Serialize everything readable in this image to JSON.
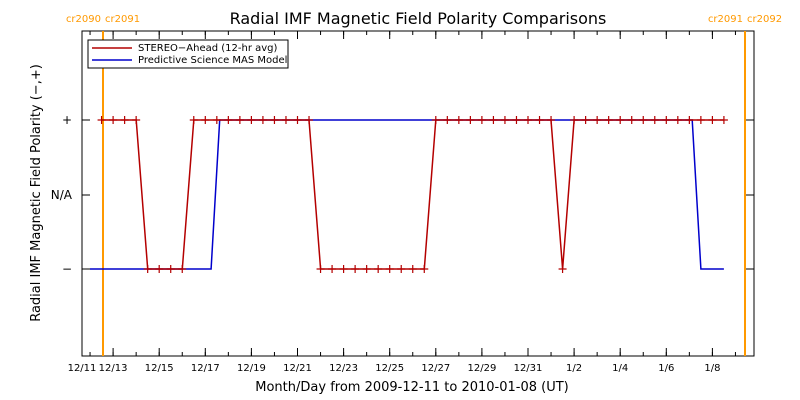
{
  "chart_data": {
    "type": "line",
    "title": "Radial IMF Magnetic Field Polarity Comparisons",
    "xlabel": "Month/Day from 2009-12-11 to 2010-01-08 (UT)",
    "ylabel": "Radial IMF Magnetic Field Polarity (−,+)",
    "xlim": [
      "2009-12-11",
      "2010-01-08"
    ],
    "x_tick_labels": [
      "12/11",
      "12/13",
      "12/15",
      "12/17",
      "12/19",
      "12/21",
      "12/23",
      "12/25",
      "12/27",
      "12/29",
      "12/31",
      "1/2",
      "1/4",
      "1/6",
      "1/8"
    ],
    "y_categories": [
      "−",
      "N/A",
      "+"
    ],
    "carrington_markers": [
      {
        "date": "2009-12-12",
        "label_left": "cr2090",
        "label_right": "cr2091"
      },
      {
        "date": "2010-01-08",
        "label_left": "cr2091",
        "label_right": "cr2092"
      }
    ],
    "colors": {
      "stereo": "#b40000",
      "mas": "#0000cc",
      "carrington": "#ff9900"
    },
    "series": [
      {
        "name": "STEREO−Ahead (12-hr avg)",
        "color": "#b40000",
        "marker": "+",
        "points": [
          [
            "2009-12-12 12:00",
            "+"
          ],
          [
            "2009-12-13 00:00",
            "+"
          ],
          [
            "2009-12-13 12:00",
            "+"
          ],
          [
            "2009-12-14 00:00",
            "+"
          ],
          [
            "2009-12-14 12:00",
            "−"
          ],
          [
            "2009-12-15 00:00",
            "−"
          ],
          [
            "2009-12-15 12:00",
            "−"
          ],
          [
            "2009-12-16 00:00",
            "−"
          ],
          [
            "2009-12-16 12:00",
            "+"
          ],
          [
            "2009-12-17 00:00",
            "+"
          ],
          [
            "2009-12-17 12:00",
            "+"
          ],
          [
            "2009-12-18 00:00",
            "+"
          ],
          [
            "2009-12-18 12:00",
            "+"
          ],
          [
            "2009-12-19 00:00",
            "+"
          ],
          [
            "2009-12-19 12:00",
            "+"
          ],
          [
            "2009-12-20 00:00",
            "+"
          ],
          [
            "2009-12-20 12:00",
            "+"
          ],
          [
            "2009-12-21 00:00",
            "+"
          ],
          [
            "2009-12-21 12:00",
            "+"
          ],
          [
            "2009-12-22 00:00",
            "−"
          ],
          [
            "2009-12-22 12:00",
            "−"
          ],
          [
            "2009-12-23 00:00",
            "−"
          ],
          [
            "2009-12-23 12:00",
            "−"
          ],
          [
            "2009-12-24 00:00",
            "−"
          ],
          [
            "2009-12-24 12:00",
            "−"
          ],
          [
            "2009-12-25 00:00",
            "−"
          ],
          [
            "2009-12-25 12:00",
            "−"
          ],
          [
            "2009-12-26 00:00",
            "−"
          ],
          [
            "2009-12-26 12:00",
            "−"
          ],
          [
            "2009-12-27 00:00",
            "+"
          ],
          [
            "2009-12-27 12:00",
            "+"
          ],
          [
            "2009-12-28 00:00",
            "+"
          ],
          [
            "2009-12-28 12:00",
            "+"
          ],
          [
            "2009-12-29 00:00",
            "+"
          ],
          [
            "2009-12-29 12:00",
            "+"
          ],
          [
            "2009-12-30 00:00",
            "+"
          ],
          [
            "2009-12-30 12:00",
            "+"
          ],
          [
            "2009-12-31 00:00",
            "+"
          ],
          [
            "2009-12-31 12:00",
            "+"
          ],
          [
            "2010-01-01 00:00",
            "+"
          ],
          [
            "2010-01-01 12:00",
            "−"
          ],
          [
            "2010-01-02 00:00",
            "+"
          ],
          [
            "2010-01-02 12:00",
            "+"
          ],
          [
            "2010-01-03 00:00",
            "+"
          ],
          [
            "2010-01-03 12:00",
            "+"
          ],
          [
            "2010-01-04 00:00",
            "+"
          ],
          [
            "2010-01-04 12:00",
            "+"
          ],
          [
            "2010-01-05 00:00",
            "+"
          ],
          [
            "2010-01-05 12:00",
            "+"
          ],
          [
            "2010-01-06 00:00",
            "+"
          ],
          [
            "2010-01-06 12:00",
            "+"
          ],
          [
            "2010-01-07 00:00",
            "+"
          ],
          [
            "2010-01-07 12:00",
            "+"
          ],
          [
            "2010-01-08 00:00",
            "+"
          ],
          [
            "2010-01-08 12:00",
            "+"
          ]
        ]
      },
      {
        "name": "Predictive Science MAS Model",
        "color": "#0000cc",
        "marker": "none",
        "points": [
          [
            "2009-12-12 00:00",
            "−"
          ],
          [
            "2009-12-17 06:00",
            "−"
          ],
          [
            "2009-12-17 15:00",
            "+"
          ],
          [
            "2010-01-07 03:00",
            "+"
          ],
          [
            "2010-01-07 12:00",
            "−"
          ],
          [
            "2010-01-08 12:00",
            "−"
          ]
        ]
      }
    ],
    "legend_position": "top-left",
    "grid": false
  }
}
